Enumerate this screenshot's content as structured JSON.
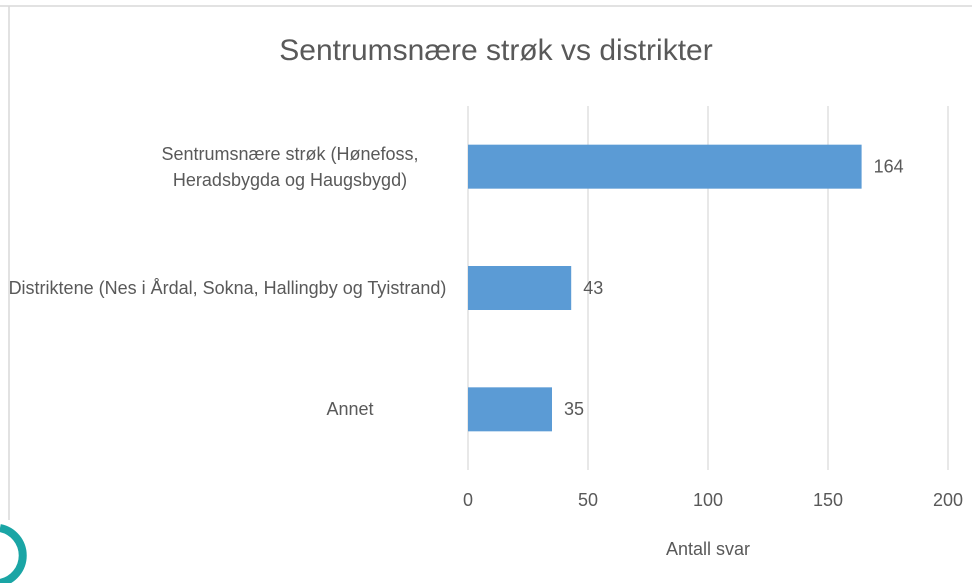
{
  "chart_data": {
    "type": "bar",
    "orientation": "horizontal",
    "title": "Sentrumsnære strøk vs distrikter",
    "categories": [
      "Sentrumsnære strøk (Hønefoss, Heradsbygda og Haugsbygd)",
      "Distriktene (Nes i Årdal, Sokna, Hallingby og Tyistrand)",
      "Annet"
    ],
    "values": [
      164,
      43,
      35
    ],
    "color": "#5b9bd5",
    "xlabel": "Antall svar",
    "xlim": [
      0,
      200
    ],
    "xticks": [
      0,
      50,
      100,
      150,
      200
    ],
    "grid": true
  }
}
